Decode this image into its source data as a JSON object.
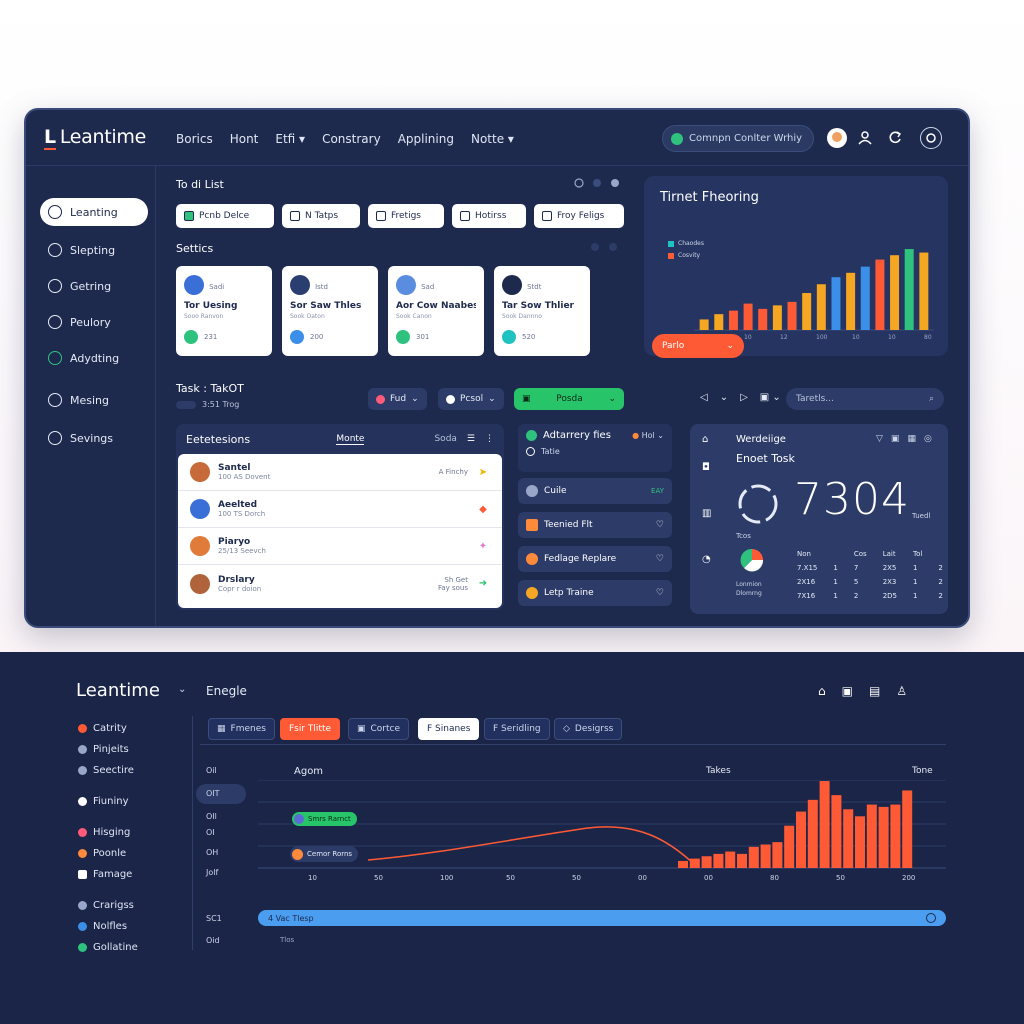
{
  "top_window": {
    "logo": "Leantime",
    "nav": [
      "Borics",
      "Hont",
      "Etfi ▾",
      "Constrary",
      "Applining",
      "Notte ▾"
    ],
    "search_pill": "Comnpn Conlter Wrhiy",
    "sidebar": {
      "items": [
        {
          "label": "Leanting",
          "icon": "list-icon",
          "active": true
        },
        {
          "label": "Slepting",
          "icon": "check-icon",
          "active": false
        },
        {
          "label": "Getring",
          "icon": "gear-icon",
          "active": false
        },
        {
          "label": "Peulory",
          "icon": "chat-icon",
          "active": false
        },
        {
          "label": "Adydting",
          "icon": "chrome-icon",
          "active": false
        },
        {
          "label": "Mesing",
          "icon": "shield-icon",
          "active": false
        },
        {
          "label": "Sevings",
          "icon": "settings-icon",
          "active": false
        }
      ]
    },
    "todo": {
      "title": "To di List",
      "chips": [
        "Pcnb Delce",
        "N Tatps",
        "Fretigs",
        "Hotirss",
        "Froy Feligs"
      ]
    },
    "settics": {
      "title": "Settics",
      "cards": [
        {
          "small": "Sadi",
          "name": "Tor Uesing",
          "sub": "Sooo Ranvon",
          "foot": "231"
        },
        {
          "small": "Istd",
          "name": "Sor Saw Thles",
          "sub": "Sook Oaton",
          "foot": "200"
        },
        {
          "small": "Sad",
          "name": "Aor Cow Naabes",
          "sub": "Sook Canon",
          "foot": "301"
        },
        {
          "small": "Stdt",
          "name": "Tar Sow Thlier",
          "sub": "Sook Dannno",
          "foot": "520"
        }
      ]
    },
    "chart": {
      "title": "Tirnet Fheoring",
      "legend": [
        "Chaodes",
        "Cosvity"
      ],
      "button": "Parlo"
    },
    "task": {
      "title": "Task : TakOT",
      "sub": "3:51 Trog",
      "dropdowns": [
        "Fud",
        "Pcsol",
        "Posda"
      ],
      "search": "Taretls..."
    },
    "list": {
      "title": "Eetetesions",
      "tab1": "Monte",
      "tab2": "Soda",
      "rows": [
        {
          "title": "Santel",
          "sub": "100 AS Dovent",
          "right": "A Finchy",
          "arrow": "➤",
          "arrow_color": "#f4b400"
        },
        {
          "title": "Aeelted",
          "sub": "100 TS Dorch",
          "right": "",
          "arrow": "◆",
          "arrow_color": "#ff5a36"
        },
        {
          "title": "Piaryo",
          "sub": "25/13 Seevch",
          "right": "",
          "arrow": "✦",
          "arrow_color": "#e27bd6"
        },
        {
          "title": "Drslary",
          "sub": "Copr r doion",
          "right": "Sh Get\nFay sous",
          "arrow": "➜",
          "arrow_color": "#27c46a"
        }
      ]
    },
    "mid": {
      "title": "Adtarrery fies",
      "badge": "Hol",
      "sub": "Tatie",
      "items": [
        {
          "label": "Cuile",
          "right": "EAY"
        },
        {
          "label": "Teenied Flt",
          "right": "♡"
        },
        {
          "label": "Fedlage Replare",
          "right": "♡"
        },
        {
          "label": "Letp Traine",
          "right": "♡"
        }
      ]
    },
    "stat": {
      "title": "Werdeiige",
      "subtitle": "Enoet Tosk",
      "number": "7304",
      "unit": "Tuedl",
      "label": "Tcos",
      "table_head": [
        "Non",
        "Cos",
        "Lait",
        "Tol"
      ],
      "table_rows": [
        [
          "7.X15",
          "1",
          "7",
          "2X5",
          "1",
          "2"
        ],
        [
          "2X16",
          "1",
          "5",
          "2X3",
          "1",
          "2"
        ],
        [
          "7X16",
          "1",
          "2",
          "2D5",
          "1",
          "2"
        ]
      ],
      "side_labels": [
        "Lonmion",
        "Dlomrng"
      ]
    },
    "chart_data": {
      "type": "bar",
      "series": [
        {
          "name": "Chaodes",
          "color": "#1fc2c0"
        },
        {
          "name": "Cosvity",
          "color": "#ff5a36"
        }
      ],
      "values": [
        12,
        18,
        22,
        30,
        24,
        28,
        32,
        42,
        52,
        60,
        65,
        72,
        80,
        85,
        92,
        88
      ],
      "colors": [
        "#f5a623",
        "#f5a623",
        "#ff5a36",
        "#ff5a36",
        "#ff5a36",
        "#f5a623",
        "#ff5a36",
        "#f5a623",
        "#f5a623",
        "#3b8fe8",
        "#f5a623",
        "#3b8fe8",
        "#ff5a36",
        "#f5a623",
        "#2ec27e",
        "#f5a623"
      ],
      "xticks": [
        "10",
        "10",
        "12",
        "100",
        "10",
        "10",
        "80"
      ]
    }
  },
  "bottom_window": {
    "logo": "Leantime",
    "breadcrumb": "Enegle",
    "sidebar": [
      {
        "label": "Catrity",
        "color": "#ff5a36"
      },
      {
        "label": "Pinjeits",
        "color": "#9aa6c8"
      },
      {
        "label": "Seectire",
        "color": "#9aa6c8"
      },
      {
        "label": "Fiuniny",
        "color": "#ffffff"
      },
      {
        "label": "Hisging",
        "color": "#ff5a7a"
      },
      {
        "label": "Poonle",
        "color": "#ff8a3c"
      },
      {
        "label": "Famage",
        "color": "#ffffff"
      },
      {
        "label": "Crarigss",
        "color": "#9aa6c8"
      },
      {
        "label": "Nolfles",
        "color": "#3b8fe8"
      },
      {
        "label": "Gollatine",
        "color": "#2ec27e"
      }
    ],
    "tabs": [
      {
        "label": "Fmenes",
        "style": "dark"
      },
      {
        "label": "Fsir Tlitte",
        "style": "red"
      },
      {
        "label": "Cortce",
        "style": "dark"
      },
      {
        "label": "F Sinanes",
        "style": "white"
      },
      {
        "label": "F Seridling",
        "style": "dark"
      },
      {
        "label": "Desigrss",
        "style": "dark"
      }
    ],
    "plot": {
      "left_label": "Agom",
      "mid_label": "Takes",
      "right_label": "Tone",
      "tag1": "Smrs Rarnct",
      "tag2": "Cemor Rorns",
      "y_labels": [
        "Oil",
        "OIT",
        "OIl",
        "OI",
        "OH",
        "Jolf"
      ],
      "x_ticks": [
        "10",
        "50",
        "100",
        "50",
        "50",
        "00",
        "00",
        "80",
        "50",
        "200"
      ],
      "bars": [
        3,
        4,
        5,
        6,
        7,
        6,
        9,
        10,
        11,
        18,
        24,
        29,
        37,
        31,
        25,
        22,
        27,
        26,
        27,
        33
      ]
    },
    "progress": {
      "left_label": "SC1",
      "text": "4 Vac Tlesp",
      "below": "Oid",
      "below_text": "Tlos"
    }
  }
}
